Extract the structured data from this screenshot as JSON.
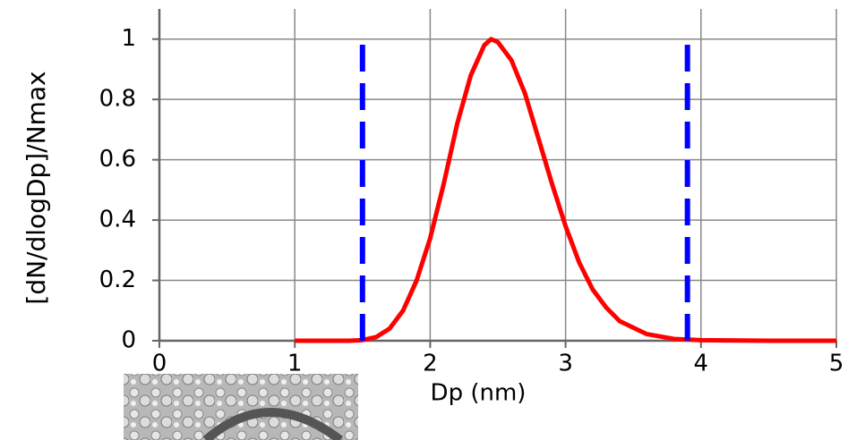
{
  "chart_data": {
    "type": "line",
    "xlabel": "Dp (nm)",
    "ylabel": "[dN/dlogDp]/Nmax",
    "xlim": [
      0,
      5
    ],
    "ylim": [
      0,
      1.1
    ],
    "xticks": [
      0,
      1,
      2,
      3,
      4,
      5
    ],
    "yticks": [
      0,
      0.2,
      0.4,
      0.6,
      0.8,
      1
    ],
    "grid": true,
    "series": [
      {
        "color": "#ff0000",
        "style": "solid",
        "x": [
          1.0,
          1.2,
          1.4,
          1.5,
          1.6,
          1.7,
          1.8,
          1.9,
          2.0,
          2.1,
          2.2,
          2.3,
          2.4,
          2.45,
          2.5,
          2.6,
          2.7,
          2.8,
          2.9,
          3.0,
          3.1,
          3.2,
          3.3,
          3.4,
          3.6,
          3.8,
          4.0,
          4.5,
          5.0
        ],
        "values": [
          0,
          0,
          0,
          0.002,
          0.012,
          0.04,
          0.1,
          0.2,
          0.34,
          0.52,
          0.72,
          0.88,
          0.98,
          1.0,
          0.99,
          0.93,
          0.82,
          0.67,
          0.52,
          0.38,
          0.26,
          0.17,
          0.11,
          0.065,
          0.022,
          0.006,
          0.002,
          0,
          0
        ]
      },
      {
        "color": "#0000ff",
        "style": "dashed",
        "x": [
          1.5,
          1.5
        ],
        "values": [
          0,
          1
        ]
      },
      {
        "color": "#0000ff",
        "style": "dashed",
        "x": [
          3.9,
          3.9
        ],
        "values": [
          0,
          1
        ]
      }
    ]
  }
}
